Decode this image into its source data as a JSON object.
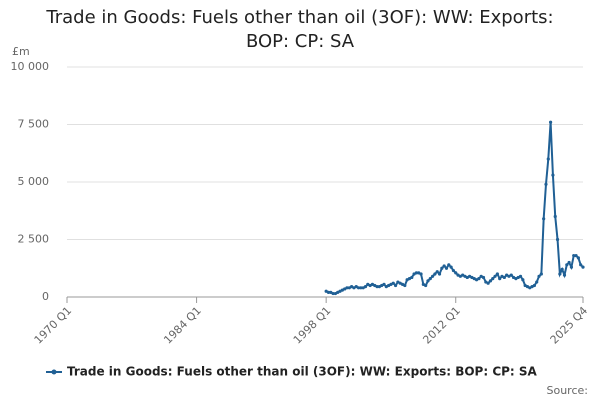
{
  "chart_data": {
    "type": "line",
    "title": "Trade in Goods: Fuels other than oil (3OF): WW: Exports: BOP: CP: SA",
    "y_label": "£m",
    "source": "Source:",
    "x": [
      1998,
      1998.25,
      1998.5,
      1998.75,
      1999,
      1999.25,
      1999.5,
      1999.75,
      2000,
      2000.25,
      2000.5,
      2000.75,
      2001,
      2001.25,
      2001.5,
      2001.75,
      2002,
      2002.25,
      2002.5,
      2002.75,
      2003,
      2003.25,
      2003.5,
      2003.75,
      2004,
      2004.25,
      2004.5,
      2004.75,
      2005,
      2005.25,
      2005.5,
      2005.75,
      2006,
      2006.25,
      2006.5,
      2006.75,
      2007,
      2007.25,
      2007.5,
      2007.75,
      2008,
      2008.25,
      2008.5,
      2008.75,
      2009,
      2009.25,
      2009.5,
      2009.75,
      2010,
      2010.25,
      2010.5,
      2010.75,
      2011,
      2011.25,
      2011.5,
      2011.75,
      2012,
      2012.25,
      2012.5,
      2012.75,
      2013,
      2013.25,
      2013.5,
      2013.75,
      2014,
      2014.25,
      2014.5,
      2014.75,
      2015,
      2015.25,
      2015.5,
      2015.75,
      2016,
      2016.25,
      2016.5,
      2016.75,
      2017,
      2017.25,
      2017.5,
      2017.75,
      2018,
      2018.25,
      2018.5,
      2018.75,
      2019,
      2019.25,
      2019.5,
      2019.75,
      2020,
      2020.25,
      2020.5,
      2020.75,
      2021,
      2021.25,
      2021.5,
      2021.75,
      2022,
      2022.25,
      2022.5,
      2022.75,
      2023,
      2023.25,
      2023.5,
      2023.75,
      2024,
      2024.25,
      2024.5,
      2024.75,
      2025,
      2025.25,
      2025.5,
      2025.75
    ],
    "series": [
      {
        "name": "Trade in Goods: Fuels other than oil (3OF): WW: Exports: BOP: CP: SA",
        "color": "#206095",
        "values": [
          250,
          200,
          200,
          150,
          150,
          200,
          250,
          300,
          350,
          400,
          400,
          450,
          400,
          450,
          400,
          400,
          400,
          450,
          550,
          500,
          550,
          500,
          450,
          450,
          500,
          550,
          450,
          500,
          550,
          600,
          500,
          650,
          600,
          550,
          500,
          750,
          800,
          850,
          1000,
          1050,
          1050,
          1000,
          550,
          500,
          700,
          800,
          900,
          1000,
          1100,
          1000,
          1250,
          1350,
          1250,
          1400,
          1300,
          1150,
          1050,
          950,
          900,
          950,
          900,
          850,
          900,
          850,
          800,
          750,
          800,
          900,
          850,
          650,
          600,
          700,
          800,
          900,
          1000,
          800,
          900,
          850,
          950,
          900,
          950,
          850,
          800,
          850,
          900,
          750,
          500,
          450,
          400,
          450,
          500,
          650,
          900,
          1000,
          3400,
          4900,
          6000,
          7600,
          5300,
          3500,
          2500,
          1000,
          1200,
          950,
          1400,
          1500,
          1300,
          1800,
          1800,
          1700,
          1400,
          1300
        ]
      }
    ],
    "xlim": [
      1970,
      2025.75
    ],
    "xticks": [
      {
        "value": 1970,
        "label": "1970 Q1"
      },
      {
        "value": 1984,
        "label": "1984 Q1"
      },
      {
        "value": 1998,
        "label": "1998 Q1"
      },
      {
        "value": 2012,
        "label": "2012 Q1"
      },
      {
        "value": 2025.75,
        "label": "2025 Q4"
      }
    ],
    "ylim": [
      0,
      10000
    ],
    "yticks": [
      0,
      {
        "value": 2500,
        "label": "2 500"
      },
      {
        "value": 5000,
        "label": "5 000"
      },
      {
        "value": 7500,
        "label": "7 500"
      },
      {
        "value": 10000,
        "label": "10 000"
      }
    ],
    "grid": true
  }
}
